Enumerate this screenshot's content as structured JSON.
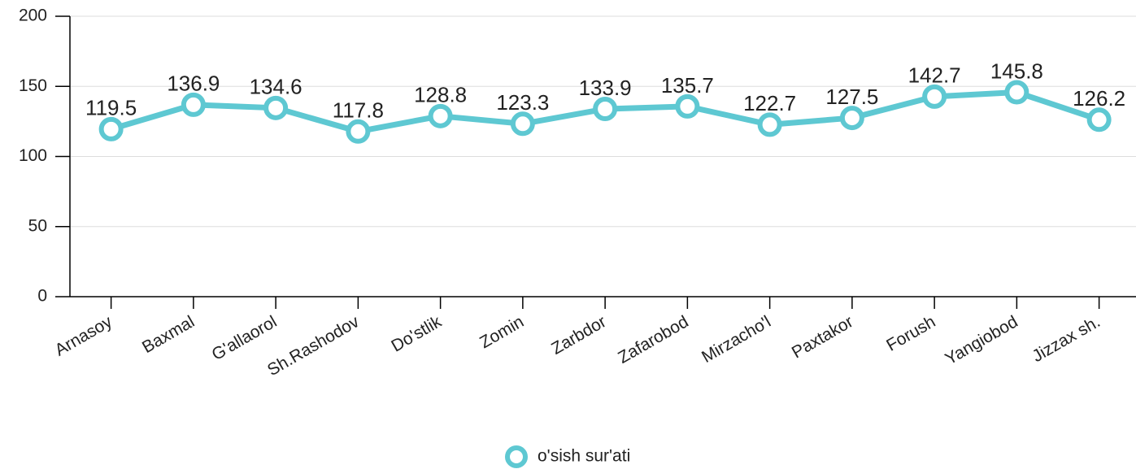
{
  "chart_data": {
    "type": "line",
    "categories": [
      "Arnasoy",
      "Baxmal",
      "G'allaorol",
      "Sh.Rashodov",
      "Do'stlik",
      "Zomin",
      "Zarbdor",
      "Zafarobod",
      "Mirzacho'l",
      "Paxtakor",
      "Forush",
      "Yangiobod",
      "Jizzax sh."
    ],
    "series": [
      {
        "name": "o'sish sur'ati",
        "color": "#5ec8d2",
        "values": [
          119.5,
          136.9,
          134.6,
          117.8,
          128.8,
          123.3,
          133.9,
          135.7,
          122.7,
          127.5,
          142.7,
          145.8,
          126.2
        ]
      }
    ],
    "ylim": [
      0,
      200
    ],
    "yticks": [
      0,
      50,
      100,
      150,
      200
    ],
    "grid": true,
    "legend": "bottom"
  }
}
